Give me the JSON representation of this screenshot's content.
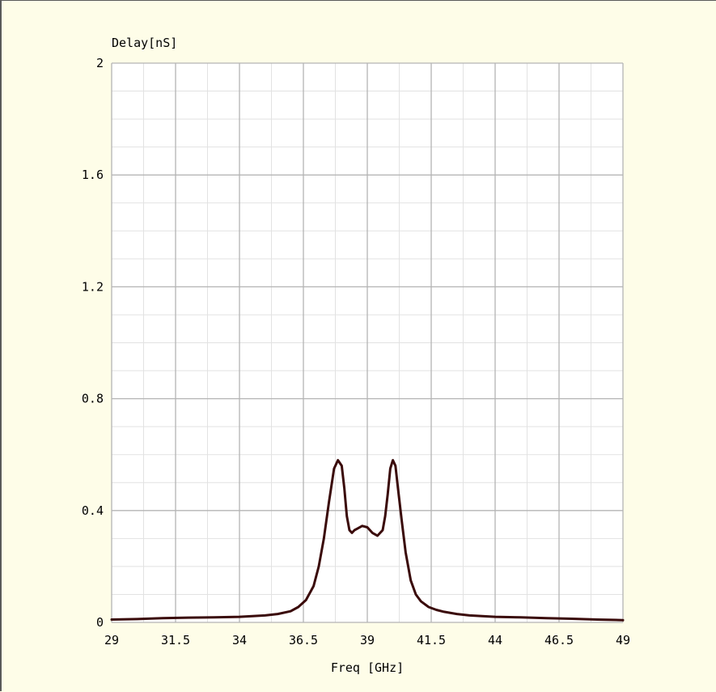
{
  "chart_data": {
    "type": "line",
    "title": "",
    "xlabel": "Freq [GHz]",
    "ylabel": "Delay[nS]",
    "xlim": [
      29,
      49
    ],
    "ylim": [
      0,
      2
    ],
    "x_ticks": [
      "29",
      "31.5",
      "34",
      "36.5",
      "39",
      "41.5",
      "44",
      "46.5",
      "49"
    ],
    "y_ticks": [
      "0",
      "0.4",
      "0.8",
      "1.2",
      "1.6",
      "2"
    ],
    "grid": true,
    "legend": "none",
    "colors": {
      "line": "#3a0a0a",
      "major_grid": "#b4b4b4",
      "minor_grid": "#e2e2e2",
      "plot_background": "#ffffff",
      "page_background": "#fefde8"
    },
    "series": [
      {
        "x": [
          29.0,
          30.0,
          31.0,
          32.0,
          33.0,
          34.0,
          35.0,
          35.5,
          36.0,
          36.3,
          36.6,
          36.9,
          37.1,
          37.3,
          37.5,
          37.7,
          37.85,
          38.0,
          38.1,
          38.2,
          38.3,
          38.4,
          38.5,
          38.6,
          38.8,
          39.0,
          39.2,
          39.4,
          39.6,
          39.7,
          39.8,
          39.9,
          40.0,
          40.1,
          40.2,
          40.35,
          40.5,
          40.7,
          40.9,
          41.1,
          41.4,
          41.7,
          42.0,
          42.5,
          43.0,
          44.0,
          45.0,
          46.0,
          47.0,
          48.0,
          49.0
        ],
        "y": [
          0.01,
          0.012,
          0.015,
          0.017,
          0.018,
          0.02,
          0.025,
          0.03,
          0.04,
          0.055,
          0.08,
          0.13,
          0.2,
          0.3,
          0.43,
          0.55,
          0.58,
          0.56,
          0.48,
          0.38,
          0.33,
          0.32,
          0.33,
          0.335,
          0.345,
          0.34,
          0.32,
          0.31,
          0.33,
          0.38,
          0.46,
          0.55,
          0.58,
          0.56,
          0.48,
          0.36,
          0.25,
          0.15,
          0.1,
          0.075,
          0.055,
          0.045,
          0.038,
          0.03,
          0.025,
          0.02,
          0.018,
          0.015,
          0.013,
          0.01,
          0.008
        ]
      }
    ]
  }
}
